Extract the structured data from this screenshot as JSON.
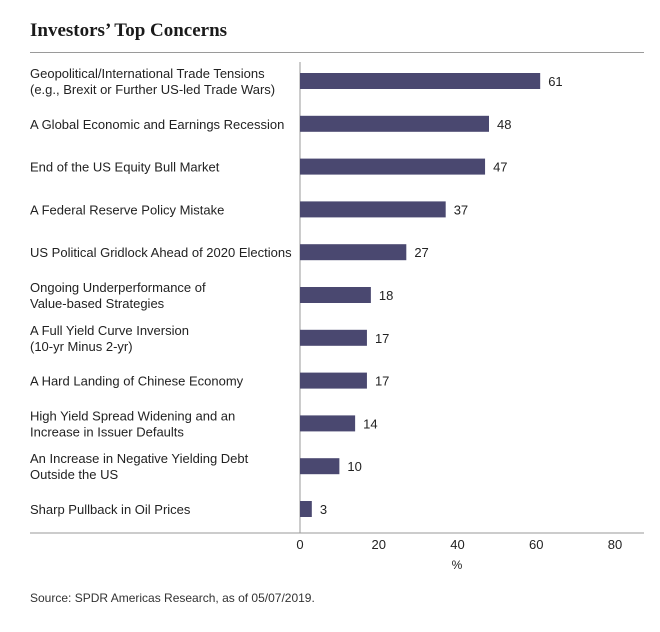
{
  "header": {
    "title": "Investors’ Top Concerns"
  },
  "footer": {
    "source": "Source: SPDR Americas Research, as of 05/07/2019."
  },
  "colors": {
    "bar": "#4a4870",
    "axis": "#9a9a9a"
  },
  "chart_data": {
    "type": "bar",
    "orientation": "horizontal",
    "title": "Investors’ Top Concerns",
    "xlabel": "%",
    "xlim": [
      0,
      80
    ],
    "xticks": [
      0,
      20,
      40,
      60,
      80
    ],
    "grid": false,
    "categories": [
      [
        "Geopolitical/International Trade Tensions",
        "(e.g., Brexit or Further US-led Trade Wars)"
      ],
      [
        "A Global Economic and Earnings Recession"
      ],
      [
        "End of the US Equity Bull Market"
      ],
      [
        "A Federal Reserve Policy Mistake"
      ],
      [
        "US Political Gridlock Ahead of 2020 Elections"
      ],
      [
        "Ongoing Underperformance of",
        "Value-based Strategies"
      ],
      [
        "A Full Yield Curve Inversion",
        "(10-yr Minus 2-yr)"
      ],
      [
        "A Hard Landing of Chinese Economy"
      ],
      [
        "High Yield Spread Widening and an",
        "Increase in Issuer Defaults"
      ],
      [
        "An Increase in Negative Yielding Debt",
        "Outside the US"
      ],
      [
        "Sharp Pullback in Oil Prices"
      ]
    ],
    "values": [
      61,
      48,
      47,
      37,
      27,
      18,
      17,
      17,
      14,
      10,
      3
    ]
  }
}
